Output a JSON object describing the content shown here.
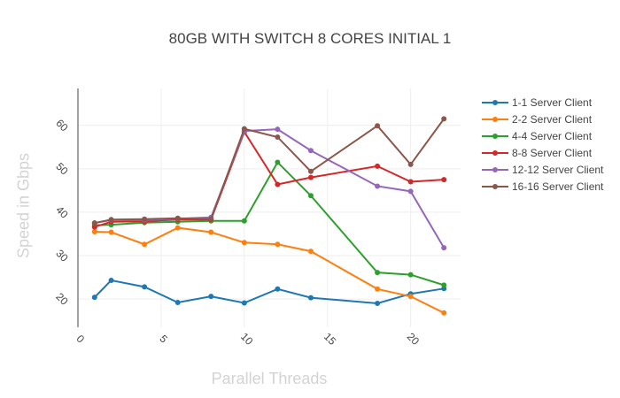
{
  "title": "80GB WITH SWITCH 8 CORES INITIAL 1",
  "chart_data": {
    "type": "line",
    "title": "80GB WITH SWITCH 8 CORES INITIAL 1",
    "xlabel": "Parallel Threads",
    "ylabel": "Speed in Gbps",
    "xlim": [
      0,
      23
    ],
    "ylim": [
      13.5,
      68.5
    ],
    "x_ticks": [
      "0",
      "5",
      "10",
      "15",
      "20"
    ],
    "y_ticks": [
      "20",
      "30",
      "40",
      "50",
      "60"
    ],
    "grid": true,
    "legend_position": "right",
    "x": [
      1,
      2,
      4,
      6,
      8,
      10,
      12,
      14,
      18,
      20,
      22
    ],
    "series": [
      {
        "name": "1-1 Server Client",
        "color": "#1f77b4",
        "values": [
          20.4,
          24.3,
          22.8,
          19.2,
          20.6,
          19.1,
          22.3,
          20.3,
          19.0,
          21.2,
          22.4
        ]
      },
      {
        "name": "2-2 Server Client",
        "color": "#ff7f0e",
        "values": [
          35.5,
          35.4,
          32.6,
          36.4,
          35.4,
          33.0,
          32.6,
          31.0,
          22.3,
          20.6,
          16.8
        ]
      },
      {
        "name": "4-4 Server Client",
        "color": "#2ca02c",
        "values": [
          37.0,
          37.1,
          37.6,
          37.8,
          38.0,
          38.0,
          51.5,
          43.8,
          26.1,
          25.6,
          23.2
        ]
      },
      {
        "name": "8-8 Server Client",
        "color": "#d62728",
        "values": [
          36.6,
          37.8,
          37.9,
          38.3,
          38.3,
          58.5,
          46.4,
          48.0,
          50.6,
          47.0,
          47.5
        ]
      },
      {
        "name": "12-12 Server Client",
        "color": "#9467bd",
        "values": [
          37.5,
          38.2,
          38.2,
          38.5,
          38.8,
          58.7,
          59.1,
          54.2,
          46.0,
          44.8,
          31.8
        ]
      },
      {
        "name": "16-16 Server Client",
        "color": "#8c564b",
        "values": [
          37.5,
          38.3,
          38.4,
          38.6,
          38.4,
          59.2,
          57.3,
          49.4,
          59.9,
          51.0,
          61.5
        ]
      }
    ]
  }
}
